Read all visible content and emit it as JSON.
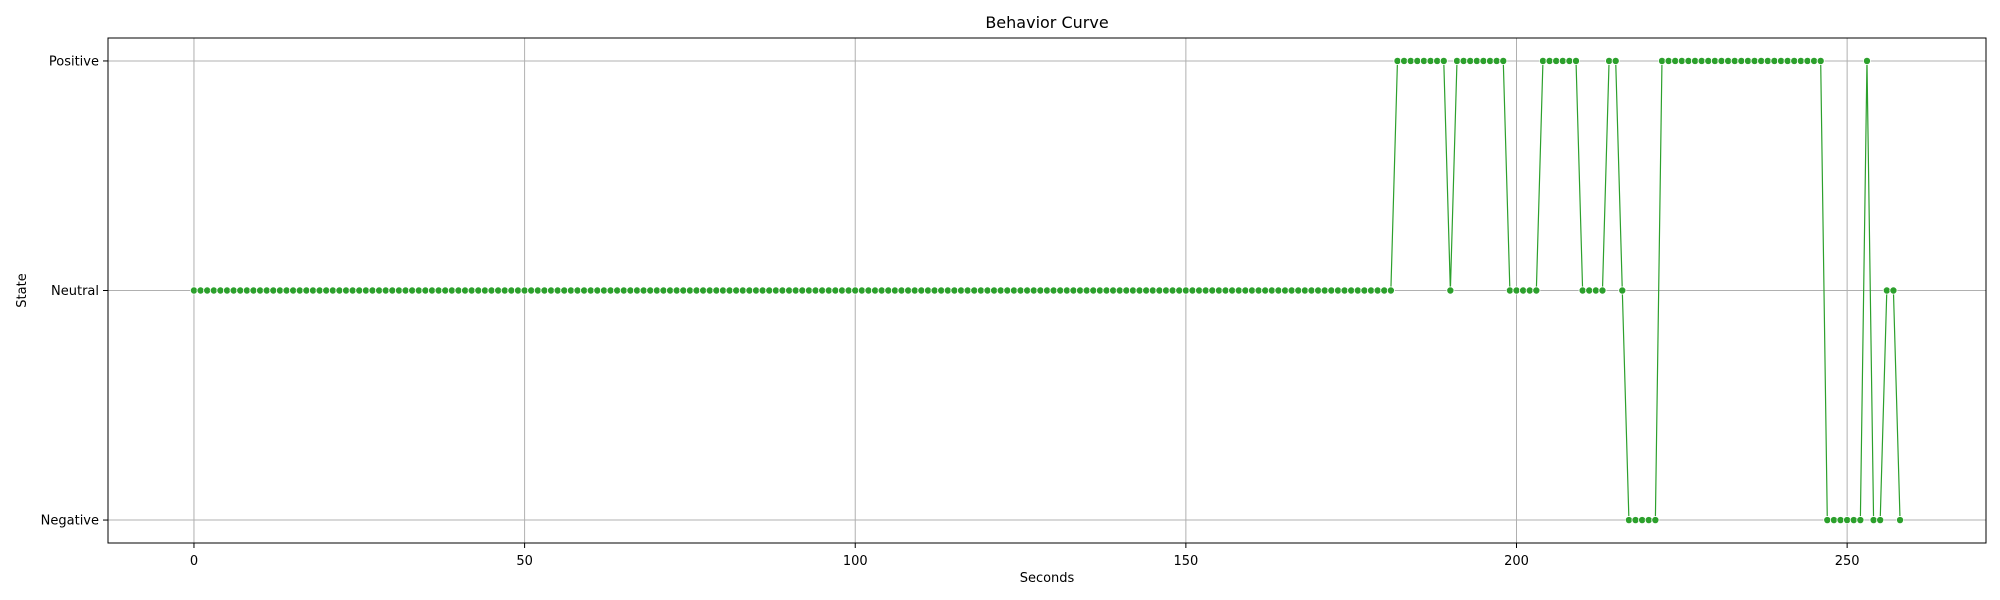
{
  "chart_data": {
    "type": "line",
    "title": "Behavior Curve",
    "xlabel": "Seconds",
    "ylabel": "State",
    "xlim": [
      -13,
      271
    ],
    "ylim": [
      -0.1,
      2.1
    ],
    "x_ticks": [
      0,
      50,
      100,
      150,
      200,
      250
    ],
    "y_categories": [
      "Negative",
      "Neutral",
      "Positive"
    ],
    "grid": true,
    "marker": "circle",
    "color": "#2ca02c",
    "series": [
      {
        "x_start": 0,
        "x_step": 1,
        "values": [
          "Neutral",
          "Neutral",
          "Neutral",
          "Neutral",
          "Neutral",
          "Neutral",
          "Neutral",
          "Neutral",
          "Neutral",
          "Neutral",
          "Neutral",
          "Neutral",
          "Neutral",
          "Neutral",
          "Neutral",
          "Neutral",
          "Neutral",
          "Neutral",
          "Neutral",
          "Neutral",
          "Neutral",
          "Neutral",
          "Neutral",
          "Neutral",
          "Neutral",
          "Neutral",
          "Neutral",
          "Neutral",
          "Neutral",
          "Neutral",
          "Neutral",
          "Neutral",
          "Neutral",
          "Neutral",
          "Neutral",
          "Neutral",
          "Neutral",
          "Neutral",
          "Neutral",
          "Neutral",
          "Neutral",
          "Neutral",
          "Neutral",
          "Neutral",
          "Neutral",
          "Neutral",
          "Neutral",
          "Neutral",
          "Neutral",
          "Neutral",
          "Neutral",
          "Neutral",
          "Neutral",
          "Neutral",
          "Neutral",
          "Neutral",
          "Neutral",
          "Neutral",
          "Neutral",
          "Neutral",
          "Neutral",
          "Neutral",
          "Neutral",
          "Neutral",
          "Neutral",
          "Neutral",
          "Neutral",
          "Neutral",
          "Neutral",
          "Neutral",
          "Neutral",
          "Neutral",
          "Neutral",
          "Neutral",
          "Neutral",
          "Neutral",
          "Neutral",
          "Neutral",
          "Neutral",
          "Neutral",
          "Neutral",
          "Neutral",
          "Neutral",
          "Neutral",
          "Neutral",
          "Neutral",
          "Neutral",
          "Neutral",
          "Neutral",
          "Neutral",
          "Neutral",
          "Neutral",
          "Neutral",
          "Neutral",
          "Neutral",
          "Neutral",
          "Neutral",
          "Neutral",
          "Neutral",
          "Neutral",
          "Neutral",
          "Neutral",
          "Neutral",
          "Neutral",
          "Neutral",
          "Neutral",
          "Neutral",
          "Neutral",
          "Neutral",
          "Neutral",
          "Neutral",
          "Neutral",
          "Neutral",
          "Neutral",
          "Neutral",
          "Neutral",
          "Neutral",
          "Neutral",
          "Neutral",
          "Neutral",
          "Neutral",
          "Neutral",
          "Neutral",
          "Neutral",
          "Neutral",
          "Neutral",
          "Neutral",
          "Neutral",
          "Neutral",
          "Neutral",
          "Neutral",
          "Neutral",
          "Neutral",
          "Neutral",
          "Neutral",
          "Neutral",
          "Neutral",
          "Neutral",
          "Neutral",
          "Neutral",
          "Neutral",
          "Neutral",
          "Neutral",
          "Neutral",
          "Neutral",
          "Neutral",
          "Neutral",
          "Neutral",
          "Neutral",
          "Neutral",
          "Neutral",
          "Neutral",
          "Neutral",
          "Neutral",
          "Neutral",
          "Neutral",
          "Neutral",
          "Neutral",
          "Neutral",
          "Neutral",
          "Neutral",
          "Neutral",
          "Neutral",
          "Neutral",
          "Neutral",
          "Neutral",
          "Neutral",
          "Neutral",
          "Neutral",
          "Neutral",
          "Neutral",
          "Neutral",
          "Neutral",
          "Neutral",
          "Neutral",
          "Neutral",
          "Neutral",
          "Neutral",
          "Neutral",
          "Neutral",
          "Neutral",
          "Neutral",
          "Positive",
          "Positive",
          "Positive",
          "Positive",
          "Positive",
          "Positive",
          "Positive",
          "Positive",
          "Neutral",
          "Positive",
          "Positive",
          "Positive",
          "Positive",
          "Positive",
          "Positive",
          "Positive",
          "Positive",
          "Neutral",
          "Neutral",
          "Neutral",
          "Neutral",
          "Neutral",
          "Positive",
          "Positive",
          "Positive",
          "Positive",
          "Positive",
          "Positive",
          "Neutral",
          "Neutral",
          "Neutral",
          "Neutral",
          "Positive",
          "Positive",
          "Neutral",
          "Negative",
          "Negative",
          "Negative",
          "Negative",
          "Negative",
          "Positive",
          "Positive",
          "Positive",
          "Positive",
          "Positive",
          "Positive",
          "Positive",
          "Positive",
          "Positive",
          "Positive",
          "Positive",
          "Positive",
          "Positive",
          "Positive",
          "Positive",
          "Positive",
          "Positive",
          "Positive",
          "Positive",
          "Positive",
          "Positive",
          "Positive",
          "Positive",
          "Positive",
          "Positive",
          "Negative",
          "Negative",
          "Negative",
          "Negative",
          "Negative",
          "Negative",
          "Positive",
          "Negative",
          "Negative",
          "Neutral",
          "Neutral",
          "Negative"
        ]
      }
    ]
  }
}
